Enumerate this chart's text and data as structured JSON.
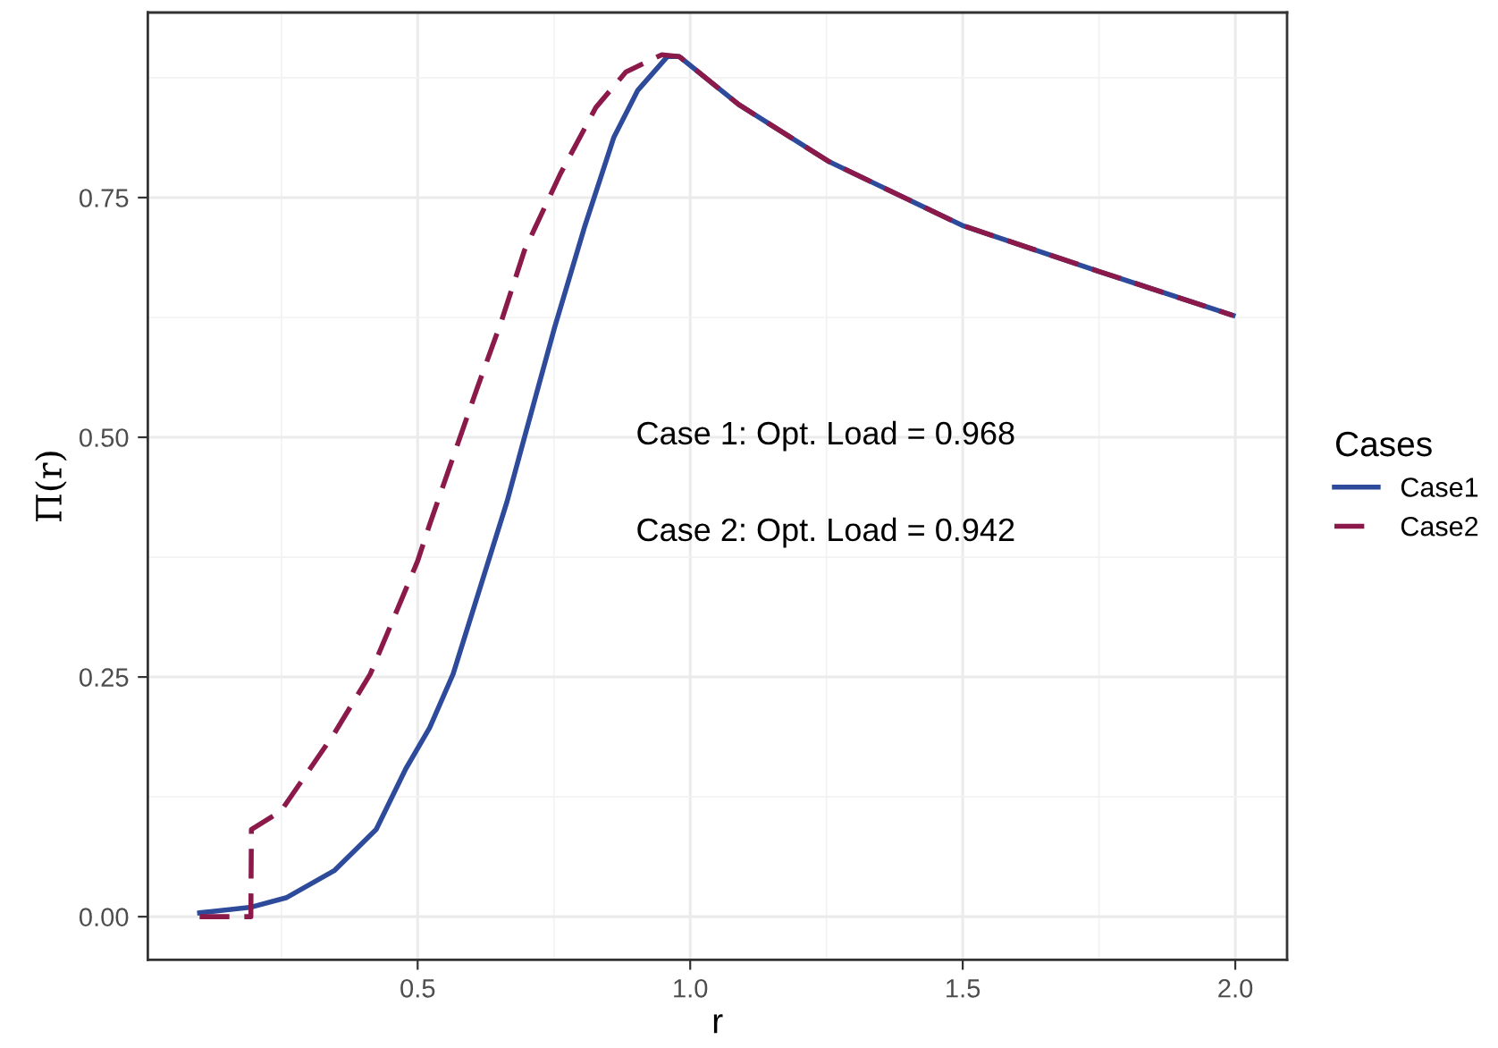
{
  "chart_data": {
    "type": "line",
    "xlabel": "r",
    "ylabel": "Π(r)",
    "legend_title": "Cases",
    "legend": "right",
    "grid": true,
    "xlim": [
      0.005,
      2.095
    ],
    "xticks": [
      {
        "value": 0.5,
        "label": "0.5"
      },
      {
        "value": 1.0,
        "label": "1.0"
      },
      {
        "value": 1.5,
        "label": "1.5"
      },
      {
        "value": 2.0,
        "label": "2.0"
      }
    ],
    "ylim": [
      -0.045,
      0.943
    ],
    "yticks": [
      {
        "value": 0,
        "label": "0.00"
      },
      {
        "value": 0.25,
        "label": "0.25"
      },
      {
        "value": 0.5,
        "label": "0.50"
      },
      {
        "value": 0.75,
        "label": "0.75"
      }
    ],
    "annotations": [
      "Case 1: Opt. Load = 0.968",
      "Case 2: Opt. Load = 0.942"
    ],
    "series": [
      {
        "name": "Case1",
        "color": "#2e4a9a",
        "line_style": "solid",
        "x": [
          0.1,
          0.195,
          0.26,
          0.347,
          0.424,
          0.478,
          0.522,
          0.565,
          0.62,
          0.664,
          0.696,
          0.751,
          0.806,
          0.86,
          0.904,
          0.958,
          0.98,
          1.089,
          1.253,
          1.499,
          1.75,
          1.996
        ],
        "values": [
          0.004,
          0.01,
          0.02,
          0.048,
          0.091,
          0.154,
          0.197,
          0.253,
          0.353,
          0.433,
          0.5,
          0.614,
          0.719,
          0.813,
          0.862,
          0.897,
          0.897,
          0.847,
          0.788,
          0.721,
          0.673,
          0.627
        ]
      },
      {
        "name": "Case2",
        "color": "#8b1a4a",
        "line_style": "dashed",
        "x": [
          0.1,
          0.194,
          0.195,
          0.249,
          0.347,
          0.413,
          0.5,
          0.522,
          0.609,
          0.653,
          0.696,
          0.762,
          0.827,
          0.882,
          0.948,
          0.98,
          1.089,
          1.253,
          1.499,
          1.75,
          1.996
        ],
        "values": [
          0.0,
          0.0,
          0.091,
          0.11,
          0.191,
          0.253,
          0.371,
          0.409,
          0.551,
          0.62,
          0.695,
          0.775,
          0.844,
          0.881,
          0.899,
          0.897,
          0.847,
          0.788,
          0.721,
          0.673,
          0.627
        ]
      }
    ]
  }
}
